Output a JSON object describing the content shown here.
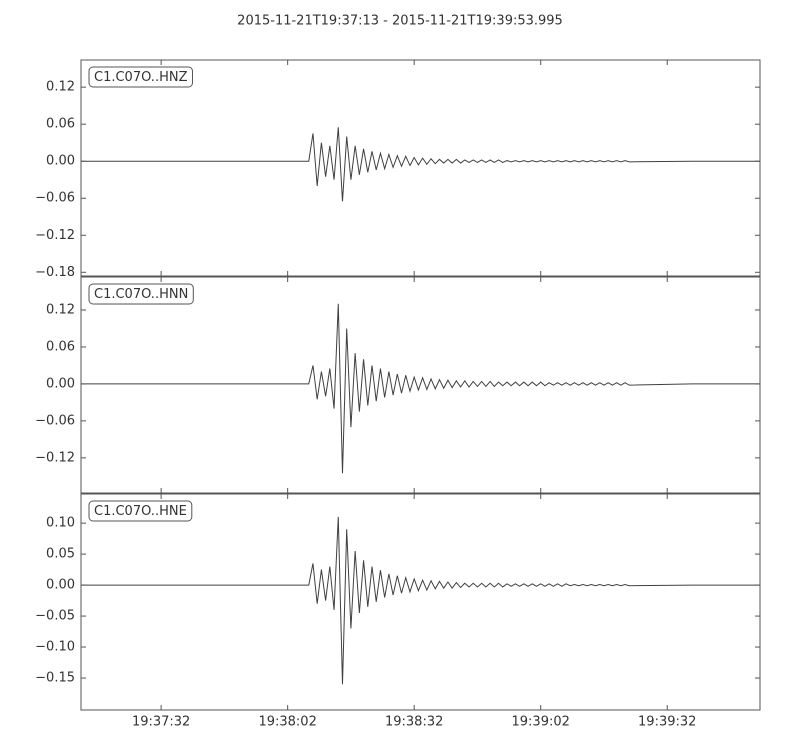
{
  "title": "2015-11-21T19:37:13  -  2015-11-21T19:39:53.995",
  "chart_data": [
    {
      "type": "line",
      "label": "C1.C07O..HNZ",
      "color": "#404040",
      "x": [
        0,
        20,
        40,
        54,
        55,
        56,
        57,
        58,
        59,
        60,
        61,
        62,
        63,
        64,
        65,
        66,
        67,
        68,
        69,
        70,
        71,
        72,
        73,
        74,
        75,
        76,
        77,
        78,
        79,
        80,
        81,
        82,
        83,
        84,
        85,
        86,
        87,
        88,
        89,
        90,
        91,
        92,
        93,
        94,
        95,
        96,
        97,
        98,
        99,
        100,
        101,
        102,
        103,
        104,
        105,
        106,
        107,
        108,
        109,
        110,
        111,
        112,
        113,
        114,
        115,
        116,
        117,
        118,
        119,
        120,
        121,
        122,
        123,
        124,
        125,
        126,
        127,
        128,
        129,
        130,
        145,
        160.995
      ],
      "values": [
        0,
        0,
        0,
        0,
        0.045,
        -0.04,
        0.03,
        -0.025,
        0.025,
        -0.03,
        0.055,
        -0.065,
        0.04,
        -0.03,
        0.025,
        -0.022,
        0.02,
        -0.018,
        0.016,
        -0.014,
        0.013,
        -0.012,
        0.011,
        -0.01,
        0.009,
        -0.008,
        0.008,
        -0.007,
        0.006,
        -0.006,
        0.005,
        -0.005,
        0.004,
        -0.004,
        0.003,
        -0.003,
        0.003,
        -0.003,
        0.003,
        -0.003,
        0.002,
        -0.002,
        0.002,
        -0.002,
        0.002,
        -0.002,
        0.002,
        -0.002,
        0.002,
        -0.002,
        0.001,
        -0.001,
        0.001,
        -0.001,
        0.001,
        -0.001,
        0.001,
        -0.001,
        0.001,
        -0.001,
        0.001,
        -0.001,
        0.001,
        -0.001,
        0.001,
        -0.001,
        0.001,
        -0.001,
        0.001,
        -0.001,
        0.001,
        -0.001,
        0.001,
        -0.001,
        0.001,
        -0.001,
        0.001,
        -0.001,
        0.001,
        -0.001,
        0,
        0
      ],
      "xlim": [
        0,
        160.995
      ],
      "ylim": [
        -0.186,
        0.164
      ],
      "yticks": [
        {
          "value": -0.18,
          "label": "−0.18"
        },
        {
          "value": -0.12,
          "label": "−0.12"
        },
        {
          "value": -0.06,
          "label": "−0.06"
        },
        {
          "value": 0,
          "label": "0.00"
        },
        {
          "value": 0.06,
          "label": "0.06"
        },
        {
          "value": 0.12,
          "label": "0.12"
        }
      ]
    },
    {
      "type": "line",
      "label": "C1.C07O..HNN",
      "color": "#404040",
      "x": [
        0,
        20,
        40,
        54,
        55,
        56,
        57,
        58,
        59,
        60,
        61,
        62,
        63,
        64,
        65,
        66,
        67,
        68,
        69,
        70,
        71,
        72,
        73,
        74,
        75,
        76,
        77,
        78,
        79,
        80,
        81,
        82,
        83,
        84,
        85,
        86,
        87,
        88,
        89,
        90,
        91,
        92,
        93,
        94,
        95,
        96,
        97,
        98,
        99,
        100,
        101,
        102,
        103,
        104,
        105,
        106,
        107,
        108,
        109,
        110,
        111,
        112,
        113,
        114,
        115,
        116,
        117,
        118,
        119,
        120,
        121,
        122,
        123,
        124,
        125,
        126,
        127,
        128,
        129,
        130,
        145,
        160.995
      ],
      "values": [
        0,
        0,
        0,
        0,
        0.03,
        -0.025,
        0.02,
        -0.02,
        0.025,
        -0.04,
        0.13,
        -0.145,
        0.09,
        -0.07,
        0.05,
        -0.045,
        0.04,
        -0.035,
        0.03,
        -0.028,
        0.025,
        -0.022,
        0.02,
        -0.018,
        0.016,
        -0.015,
        0.014,
        -0.012,
        0.011,
        -0.01,
        0.01,
        -0.009,
        0.008,
        -0.008,
        0.007,
        -0.007,
        0.006,
        -0.006,
        0.005,
        -0.005,
        0.005,
        -0.005,
        0.004,
        -0.004,
        0.004,
        -0.004,
        0.004,
        -0.004,
        0.003,
        -0.003,
        0.003,
        -0.003,
        0.003,
        -0.003,
        0.003,
        -0.003,
        0.003,
        -0.003,
        0.003,
        -0.003,
        0.002,
        -0.002,
        0.002,
        -0.002,
        0.002,
        -0.002,
        0.002,
        -0.002,
        0.002,
        -0.002,
        0.002,
        -0.002,
        0.002,
        -0.002,
        0.002,
        -0.002,
        0.002,
        -0.002,
        0.002,
        -0.002,
        0,
        0
      ],
      "xlim": [
        0,
        160.995
      ],
      "ylim": [
        -0.177,
        0.1735
      ],
      "yticks": [
        {
          "value": -0.12,
          "label": "−0.12"
        },
        {
          "value": -0.06,
          "label": "−0.06"
        },
        {
          "value": 0,
          "label": "0.00"
        },
        {
          "value": 0.06,
          "label": "0.06"
        },
        {
          "value": 0.12,
          "label": "0.12"
        }
      ]
    },
    {
      "type": "line",
      "label": "C1.C07O..HNE",
      "color": "#404040",
      "x": [
        0,
        20,
        40,
        54,
        55,
        56,
        57,
        58,
        59,
        60,
        61,
        62,
        63,
        64,
        65,
        66,
        67,
        68,
        69,
        70,
        71,
        72,
        73,
        74,
        75,
        76,
        77,
        78,
        79,
        80,
        81,
        82,
        83,
        84,
        85,
        86,
        87,
        88,
        89,
        90,
        91,
        92,
        93,
        94,
        95,
        96,
        97,
        98,
        99,
        100,
        101,
        102,
        103,
        104,
        105,
        106,
        107,
        108,
        109,
        110,
        111,
        112,
        113,
        114,
        115,
        116,
        117,
        118,
        119,
        120,
        121,
        122,
        123,
        124,
        125,
        126,
        127,
        128,
        129,
        130,
        145,
        160.995
      ],
      "values": [
        0,
        0,
        0,
        0,
        0.035,
        -0.03,
        0.025,
        -0.025,
        0.03,
        -0.04,
        0.11,
        -0.16,
        0.09,
        -0.07,
        0.055,
        -0.045,
        0.04,
        -0.035,
        0.03,
        -0.027,
        0.024,
        -0.02,
        0.018,
        -0.016,
        0.015,
        -0.013,
        0.012,
        -0.011,
        0.01,
        -0.009,
        0.008,
        -0.008,
        0.007,
        -0.006,
        0.006,
        -0.005,
        0.005,
        -0.005,
        0.004,
        -0.004,
        0.003,
        -0.003,
        0.003,
        -0.003,
        0.003,
        -0.003,
        0.003,
        -0.003,
        0.003,
        -0.003,
        0.002,
        -0.002,
        0.002,
        -0.002,
        0.002,
        -0.002,
        0.002,
        -0.002,
        0.002,
        -0.002,
        0.002,
        -0.002,
        0.002,
        -0.002,
        0.002,
        -0.001,
        0.001,
        -0.001,
        0.001,
        -0.001,
        0.001,
        -0.001,
        0.001,
        -0.001,
        0.001,
        -0.001,
        0.001,
        -0.001,
        0.001,
        -0.001,
        0,
        0
      ],
      "xlim": [
        0,
        160.995
      ],
      "ylim": [
        -0.2016,
        0.147
      ],
      "yticks": [
        {
          "value": -0.15,
          "label": "−0.15"
        },
        {
          "value": -0.1,
          "label": "−0.10"
        },
        {
          "value": -0.05,
          "label": "−0.05"
        },
        {
          "value": 0,
          "label": "0.00"
        },
        {
          "value": 0.05,
          "label": "0.05"
        },
        {
          "value": 0.1,
          "label": "0.10"
        }
      ],
      "xticks": [
        {
          "value": 19,
          "label": "19:37:32"
        },
        {
          "value": 49,
          "label": "19:38:02"
        },
        {
          "value": 79,
          "label": "19:38:32"
        },
        {
          "value": 109,
          "label": "19:39:02"
        },
        {
          "value": 139,
          "label": "19:39:32"
        }
      ]
    }
  ]
}
